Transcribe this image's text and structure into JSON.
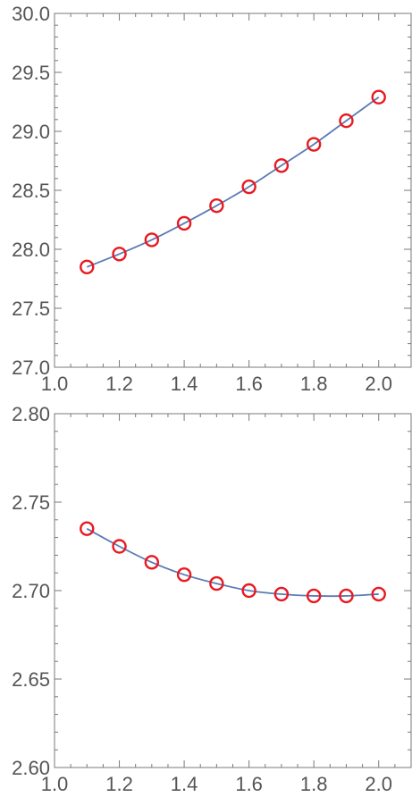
{
  "chart_data": [
    {
      "type": "line",
      "title": "",
      "xlabel": "",
      "ylabel": "",
      "xlim": [
        1.0,
        2.1
      ],
      "ylim": [
        27.0,
        30.0
      ],
      "x_ticks": [
        "1.0",
        "1.2",
        "1.4",
        "1.6",
        "1.8",
        "2.0"
      ],
      "y_ticks": [
        "27.0",
        "27.5",
        "28.0",
        "28.5",
        "29.0",
        "29.5",
        "30.0"
      ],
      "grid": false,
      "series": [
        {
          "x": [
            1.1,
            1.2,
            1.3,
            1.4,
            1.5,
            1.6,
            1.7,
            1.8,
            1.9,
            2.0
          ],
          "y": [
            27.85,
            27.96,
            28.08,
            28.22,
            28.37,
            28.53,
            28.71,
            28.89,
            29.09,
            29.29
          ],
          "line_color": "#5b7bb5",
          "marker_color": "#e8191f",
          "marker": "open-circle"
        }
      ]
    },
    {
      "type": "line",
      "title": "",
      "xlabel": "",
      "ylabel": "",
      "xlim": [
        1.0,
        2.1
      ],
      "ylim": [
        2.6,
        2.8
      ],
      "x_ticks": [
        "1.0",
        "1.2",
        "1.4",
        "1.6",
        "1.8",
        "2.0"
      ],
      "y_ticks": [
        "2.60",
        "2.65",
        "2.70",
        "2.75",
        "2.80"
      ],
      "grid": false,
      "series": [
        {
          "x": [
            1.1,
            1.2,
            1.3,
            1.4,
            1.5,
            1.6,
            1.7,
            1.8,
            1.9,
            2.0
          ],
          "y": [
            2.735,
            2.725,
            2.716,
            2.709,
            2.704,
            2.7,
            2.698,
            2.697,
            2.697,
            2.698
          ],
          "line_color": "#5b7bb5",
          "marker_color": "#e8191f",
          "marker": "open-circle"
        }
      ]
    }
  ]
}
